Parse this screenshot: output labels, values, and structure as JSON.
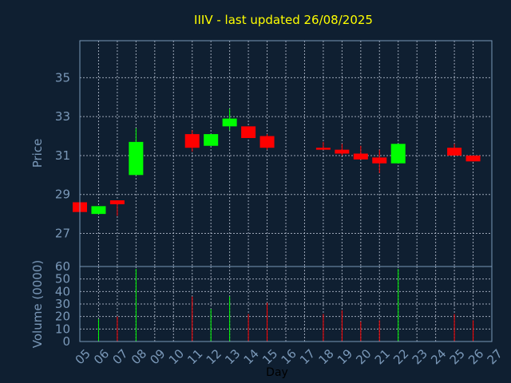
{
  "chart_data": {
    "type": "candlestick",
    "title": "IIIV - last updated 26/08/2025",
    "xlabel": "Day",
    "price_axis": {
      "ylabel": "Price",
      "ylim": [
        25.3,
        36.9
      ],
      "ticks": [
        27,
        29,
        31,
        33,
        35
      ]
    },
    "volume_axis": {
      "ylabel": "Volume (0000)",
      "ylim": [
        0,
        60
      ],
      "ticks": [
        0,
        10,
        20,
        30,
        40,
        50,
        60
      ]
    },
    "x_tick_labels": [
      "05",
      "06",
      "07",
      "08",
      "09",
      "10",
      "11",
      "12",
      "13",
      "14",
      "15",
      "16",
      "17",
      "18",
      "19",
      "20",
      "21",
      "22",
      "23",
      "24",
      "25",
      "26",
      "27"
    ],
    "grid": true,
    "colors": {
      "up": "#00ff00",
      "down": "#ff0000",
      "background": "#0f1f31",
      "title": "#ffff00",
      "axis": "#7a98b8"
    },
    "candles": [
      {
        "day": "05",
        "open": 28.6,
        "high": 28.6,
        "low": 28.1,
        "close": 28.1,
        "volume": 0
      },
      {
        "day": "06",
        "open": 28.0,
        "high": 28.4,
        "low": 28.0,
        "close": 28.4,
        "volume": 18
      },
      {
        "day": "07",
        "open": 28.7,
        "high": 28.7,
        "low": 27.9,
        "close": 28.5,
        "volume": 20
      },
      {
        "day": "08",
        "open": 30.0,
        "high": 32.4,
        "low": 30.0,
        "close": 31.7,
        "volume": 58
      },
      {
        "day": "11",
        "open": 32.1,
        "high": 32.3,
        "low": 31.2,
        "close": 31.4,
        "volume": 36
      },
      {
        "day": "12",
        "open": 31.5,
        "high": 32.1,
        "low": 31.5,
        "close": 32.1,
        "volume": 26
      },
      {
        "day": "13",
        "open": 32.5,
        "high": 33.4,
        "low": 32.3,
        "close": 32.9,
        "volume": 36
      },
      {
        "day": "14",
        "open": 32.5,
        "high": 32.5,
        "low": 31.9,
        "close": 31.9,
        "volume": 22
      },
      {
        "day": "15",
        "open": 32.0,
        "high": 32.1,
        "low": 31.3,
        "close": 31.4,
        "volume": 31
      },
      {
        "day": "18",
        "open": 31.4,
        "high": 31.7,
        "low": 31.3,
        "close": 31.3,
        "volume": 22
      },
      {
        "day": "19",
        "open": 31.3,
        "high": 31.6,
        "low": 31.0,
        "close": 31.1,
        "volume": 25
      },
      {
        "day": "20",
        "open": 31.1,
        "high": 31.5,
        "low": 30.8,
        "close": 30.8,
        "volume": 16
      },
      {
        "day": "21",
        "open": 30.9,
        "high": 31.3,
        "low": 30.1,
        "close": 30.6,
        "volume": 17
      },
      {
        "day": "22",
        "open": 30.6,
        "high": 31.6,
        "low": 30.6,
        "close": 31.6,
        "volume": 58
      },
      {
        "day": "25",
        "open": 31.4,
        "high": 31.6,
        "low": 31.0,
        "close": 31.0,
        "volume": 22
      },
      {
        "day": "26",
        "open": 31.0,
        "high": 31.0,
        "low": 30.7,
        "close": 30.7,
        "volume": 17
      }
    ]
  }
}
